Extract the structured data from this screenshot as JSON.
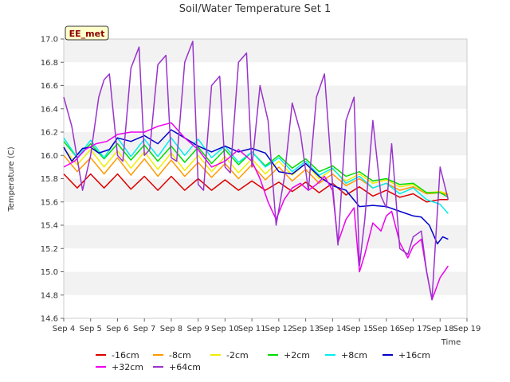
{
  "chart_data": {
    "type": "line",
    "title": "Soil/Water Temperature Set 1",
    "xlabel": "Time",
    "ylabel": "Temperature (C)",
    "ylim": [
      14.6,
      17.0
    ],
    "xlim": [
      4,
      19
    ],
    "x_ticks": [
      "Sep 4",
      "Sep 5",
      "Sep 6",
      "Sep 7",
      "Sep 8",
      "Sep 9",
      "Sep 10",
      "Sep 11",
      "Sep 12",
      "Sep 13",
      "Sep 14",
      "Sep 15",
      "Sep 16",
      "Sep 17",
      "Sep 18",
      "Sep 19"
    ],
    "y_ticks": [
      "14.6",
      "14.8",
      "15.0",
      "15.2",
      "15.4",
      "15.6",
      "15.8",
      "16.0",
      "16.2",
      "16.4",
      "16.6",
      "16.8",
      "17.0"
    ],
    "y_tick_values": [
      14.6,
      14.8,
      15.0,
      15.2,
      15.4,
      15.6,
      15.8,
      16.0,
      16.2,
      16.4,
      16.6,
      16.8,
      17.0
    ],
    "grid": "horizontal bands",
    "legend_position": "bottom",
    "badge": "EE_met",
    "series": [
      {
        "name": "-16cm",
        "color": "#dd0000",
        "x": [
          4.0,
          4.5,
          5.0,
          5.5,
          6.0,
          6.5,
          7.0,
          7.5,
          8.0,
          8.5,
          9.0,
          9.5,
          10.0,
          10.5,
          11.0,
          11.5,
          12.0,
          12.5,
          13.0,
          13.5,
          14.0,
          14.5,
          15.0,
          15.5,
          16.0,
          16.5,
          17.0,
          17.5,
          18.0,
          18.3
        ],
        "y": [
          15.84,
          15.72,
          15.84,
          15.72,
          15.84,
          15.71,
          15.82,
          15.7,
          15.82,
          15.7,
          15.8,
          15.7,
          15.79,
          15.7,
          15.78,
          15.7,
          15.77,
          15.69,
          15.77,
          15.68,
          15.76,
          15.66,
          15.73,
          15.65,
          15.7,
          15.64,
          15.67,
          15.6,
          15.62,
          15.62
        ]
      },
      {
        "name": "-8cm",
        "color": "#ff9900",
        "x": [
          4.0,
          4.5,
          5.0,
          5.5,
          6.0,
          6.5,
          7.0,
          7.5,
          8.0,
          8.5,
          9.0,
          9.5,
          10.0,
          10.5,
          11.0,
          11.5,
          12.0,
          12.5,
          13.0,
          13.5,
          14.0,
          14.5,
          15.0,
          15.5,
          16.0,
          16.5,
          17.0,
          17.5,
          18.0,
          18.3
        ],
        "y": [
          16.0,
          15.86,
          15.98,
          15.84,
          15.98,
          15.83,
          15.97,
          15.82,
          15.96,
          15.82,
          15.94,
          15.81,
          15.93,
          15.8,
          15.92,
          15.79,
          15.9,
          15.78,
          15.88,
          15.76,
          15.84,
          15.74,
          15.8,
          15.72,
          15.76,
          15.7,
          15.73,
          15.67,
          15.68,
          15.66
        ]
      },
      {
        "name": "-2cm",
        "color": "#eeee00",
        "x": [
          4.0,
          4.5,
          5.0,
          5.5,
          6.0,
          6.5,
          7.0,
          7.5,
          8.0,
          8.5,
          9.0,
          9.5,
          10.0,
          10.5,
          11.0,
          11.5,
          12.0,
          12.5,
          13.0,
          13.5,
          14.0,
          14.5,
          15.0,
          15.5,
          16.0,
          16.5,
          17.0,
          17.5,
          18.0,
          18.3
        ],
        "y": [
          16.06,
          15.92,
          16.05,
          15.9,
          16.04,
          15.89,
          16.03,
          15.88,
          16.02,
          15.87,
          16.0,
          15.86,
          15.99,
          15.85,
          15.97,
          15.84,
          15.95,
          15.83,
          15.93,
          15.8,
          15.88,
          15.78,
          15.84,
          15.76,
          15.79,
          15.73,
          15.75,
          15.68,
          15.69,
          15.67
        ]
      },
      {
        "name": "+2cm",
        "color": "#00dd00",
        "x": [
          4.0,
          4.5,
          5.0,
          5.5,
          6.0,
          6.5,
          7.0,
          7.5,
          8.0,
          8.5,
          9.0,
          9.5,
          10.0,
          10.5,
          11.0,
          11.5,
          12.0,
          12.5,
          13.0,
          13.5,
          14.0,
          14.5,
          15.0,
          15.5,
          16.0,
          16.5,
          17.0,
          17.5,
          18.0,
          18.3
        ],
        "y": [
          16.12,
          15.98,
          16.1,
          15.97,
          16.1,
          15.96,
          16.09,
          15.95,
          16.08,
          15.94,
          16.07,
          15.93,
          16.05,
          15.92,
          16.03,
          15.91,
          16.0,
          15.89,
          15.97,
          15.86,
          15.91,
          15.82,
          15.86,
          15.78,
          15.8,
          15.75,
          15.76,
          15.68,
          15.68,
          15.64
        ]
      },
      {
        "name": "+8cm",
        "color": "#00eeee",
        "x": [
          4.0,
          4.5,
          5.0,
          5.5,
          6.0,
          6.5,
          7.0,
          7.5,
          8.0,
          8.5,
          9.0,
          9.5,
          10.0,
          10.5,
          11.0,
          11.5,
          12.0,
          12.5,
          13.0,
          13.5,
          14.0,
          14.5,
          15.0,
          15.5,
          16.0,
          16.5,
          17.0,
          17.5,
          18.0,
          18.3
        ],
        "y": [
          16.15,
          15.98,
          16.13,
          15.98,
          16.15,
          15.99,
          16.14,
          15.99,
          16.15,
          16.0,
          16.14,
          15.98,
          16.08,
          15.94,
          16.03,
          15.9,
          15.98,
          15.86,
          15.95,
          15.83,
          15.89,
          15.76,
          15.82,
          15.72,
          15.76,
          15.67,
          15.72,
          15.62,
          15.58,
          15.5
        ]
      },
      {
        "name": "+16cm",
        "color": "#0000cc",
        "x": [
          4.0,
          4.3,
          4.7,
          5.0,
          5.3,
          5.7,
          6.0,
          6.5,
          7.0,
          7.5,
          8.0,
          8.5,
          9.0,
          9.5,
          10.0,
          10.5,
          11.0,
          11.5,
          12.0,
          12.5,
          13.0,
          13.5,
          14.0,
          14.5,
          15.0,
          15.5,
          16.0,
          16.5,
          17.0,
          17.3,
          17.6,
          17.9,
          18.1,
          18.3
        ],
        "y": [
          16.07,
          15.95,
          16.06,
          16.07,
          16.02,
          16.05,
          16.15,
          16.12,
          16.17,
          16.1,
          16.22,
          16.15,
          16.08,
          16.03,
          16.08,
          16.03,
          16.06,
          16.02,
          15.86,
          15.84,
          15.93,
          15.82,
          15.74,
          15.7,
          15.56,
          15.57,
          15.56,
          15.52,
          15.48,
          15.47,
          15.4,
          15.24,
          15.3,
          15.28
        ]
      },
      {
        "name": "+32cm",
        "color": "#ee00ee",
        "x": [
          4.0,
          4.4,
          4.8,
          5.2,
          5.6,
          6.0,
          6.5,
          7.0,
          7.5,
          8.0,
          8.5,
          9.0,
          9.5,
          10.0,
          10.5,
          11.0,
          11.3,
          11.6,
          11.9,
          12.2,
          12.5,
          12.8,
          13.1,
          13.4,
          13.7,
          14.0,
          14.2,
          14.5,
          14.8,
          15.0,
          15.2,
          15.5,
          15.8,
          16.0,
          16.2,
          16.5,
          16.8,
          17.0,
          17.3,
          17.5,
          17.7,
          18.0,
          18.3
        ],
        "y": [
          15.9,
          15.95,
          16.05,
          16.1,
          16.12,
          16.18,
          16.2,
          16.2,
          16.25,
          16.28,
          16.15,
          16.05,
          15.9,
          15.95,
          16.05,
          15.95,
          15.8,
          15.6,
          15.45,
          15.62,
          15.72,
          15.76,
          15.7,
          15.75,
          15.82,
          15.7,
          15.25,
          15.45,
          15.55,
          15.0,
          15.15,
          15.42,
          15.35,
          15.48,
          15.52,
          15.25,
          15.12,
          15.22,
          15.28,
          15.0,
          14.76,
          14.95,
          15.05
        ]
      },
      {
        "name": "+64cm",
        "color": "#9933cc",
        "x": [
          4.0,
          4.3,
          4.7,
          5.0,
          5.3,
          5.5,
          5.7,
          6.0,
          6.2,
          6.5,
          6.8,
          7.0,
          7.2,
          7.5,
          7.8,
          8.0,
          8.2,
          8.5,
          8.8,
          9.0,
          9.2,
          9.5,
          9.8,
          10.0,
          10.2,
          10.5,
          10.8,
          11.0,
          11.3,
          11.6,
          11.9,
          12.2,
          12.5,
          12.8,
          13.1,
          13.4,
          13.7,
          14.0,
          14.2,
          14.5,
          14.8,
          15.0,
          15.2,
          15.5,
          15.8,
          16.0,
          16.2,
          16.5,
          16.8,
          17.0,
          17.3,
          17.5,
          17.7,
          18.0,
          18.3
        ],
        "y": [
          16.5,
          16.25,
          15.7,
          16.0,
          16.5,
          16.65,
          16.7,
          16.0,
          15.95,
          16.75,
          16.93,
          16.0,
          16.05,
          16.78,
          16.86,
          15.98,
          15.95,
          16.8,
          16.98,
          15.75,
          15.7,
          16.6,
          16.68,
          15.9,
          15.85,
          16.8,
          16.88,
          15.9,
          16.6,
          16.3,
          15.4,
          15.8,
          16.45,
          16.2,
          15.7,
          16.5,
          16.7,
          15.75,
          15.23,
          16.3,
          16.5,
          15.05,
          15.45,
          16.3,
          15.65,
          15.55,
          16.1,
          15.2,
          15.15,
          15.3,
          15.35,
          15.0,
          14.76,
          15.9,
          15.62
        ]
      }
    ]
  }
}
